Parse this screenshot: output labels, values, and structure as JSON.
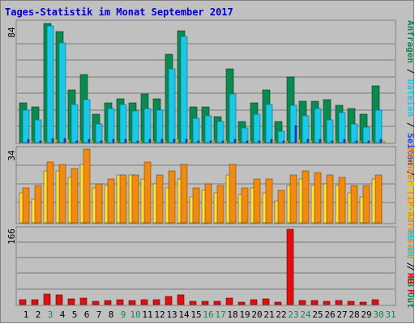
{
  "title": "Tages-Statistik im Monat September 2017",
  "colors": {
    "background": "#c0c0c0",
    "frame": "#808080",
    "title": "#0000cc",
    "grid": "#7a7a7a",
    "weekday": "#000000",
    "weekend": "#0b8a4f"
  },
  "legend_right": {
    "panel1": [
      {
        "text": "Anfragen",
        "color": "#0b8a4f"
      },
      {
        "text": " / ",
        "color": "#000000"
      },
      {
        "text": "Dateien",
        "color": "#1cc8e8"
      },
      {
        "text": " / ",
        "color": "#000000"
      },
      {
        "text": "Seiten",
        "color": "#1e44d8"
      },
      {
        "text": " / ",
        "color": "#000000"
      },
      {
        "text": "Besuche",
        "color": "#e5d400"
      }
    ],
    "panel2": [
      {
        "text": "Rechner (IP-Adressen)",
        "color": "#f08a10"
      },
      {
        "text": " / ",
        "color": "#000000"
      },
      {
        "text": "KB Out",
        "color": "#0b8a4f"
      }
    ],
    "panel3": [
      {
        "text": "KB In",
        "color": "#1cc8e8"
      },
      {
        "text": " / ",
        "color": "#000000"
      },
      {
        "text": "KB F",
        "color": "#e01010"
      }
    ]
  },
  "chart_data": [
    {
      "type": "bar",
      "title": "Tages-Statistik im Monat September 2017",
      "categories": [
        "1",
        "2",
        "3",
        "4",
        "5",
        "6",
        "7",
        "8",
        "9",
        "10",
        "11",
        "12",
        "13",
        "14",
        "15",
        "16",
        "17",
        "18",
        "19",
        "20",
        "21",
        "22",
        "23",
        "24",
        "25",
        "26",
        "27",
        "28",
        "29",
        "30",
        "31"
      ],
      "weekend_days": [
        "3",
        "9",
        "10",
        "16",
        "17",
        "23",
        "24",
        "30",
        "31"
      ],
      "ylabel": "84",
      "ylim": [
        0,
        84
      ],
      "series": [
        {
          "name": "Anfragen",
          "color": "#0b8a4f",
          "values": [
            28,
            25,
            84,
            78,
            37,
            48,
            20,
            28,
            31,
            28,
            34,
            31,
            62,
            79,
            25,
            25,
            18,
            52,
            15,
            28,
            37,
            15,
            46,
            29,
            29,
            30,
            26,
            24,
            20,
            40,
            null
          ]
        },
        {
          "name": "Dateien",
          "color": "#1cc8e8",
          "values": [
            23,
            16,
            82,
            70,
            27,
            30,
            13,
            24,
            27,
            22,
            24,
            23,
            52,
            75,
            17,
            19,
            15,
            34,
            10,
            20,
            27,
            8,
            26,
            19,
            24,
            16,
            21,
            13,
            11,
            23,
            null
          ]
        },
        {
          "name": "Seiten",
          "color": "#1e44d8",
          "values": [
            2,
            1,
            3,
            3,
            1,
            2,
            1,
            2,
            2,
            1,
            2,
            2,
            2,
            2,
            1,
            1,
            1,
            2,
            1,
            1,
            2,
            1,
            12,
            2,
            2,
            1,
            2,
            1,
            1,
            2,
            null
          ]
        },
        {
          "name": "Besuche",
          "color": "#e5d400",
          "values": [
            1,
            1,
            2,
            2,
            1,
            1,
            1,
            1,
            1,
            1,
            1,
            1,
            2,
            2,
            1,
            1,
            1,
            1,
            1,
            1,
            1,
            1,
            2,
            1,
            1,
            1,
            1,
            1,
            1,
            1,
            null
          ]
        }
      ]
    },
    {
      "type": "bar",
      "categories": [
        "1",
        "2",
        "3",
        "4",
        "5",
        "6",
        "7",
        "8",
        "9",
        "10",
        "11",
        "12",
        "13",
        "14",
        "15",
        "16",
        "17",
        "18",
        "19",
        "20",
        "21",
        "22",
        "23",
        "24",
        "25",
        "26",
        "27",
        "28",
        "29",
        "30",
        "31"
      ],
      "ylabel": "34",
      "ylim": [
        0,
        34
      ],
      "series": [
        {
          "name": "Besuche",
          "color": "#ffe040",
          "values": [
            14,
            11,
            24,
            24,
            21,
            27,
            16,
            17,
            22,
            22,
            20,
            18,
            16,
            20,
            12,
            15,
            14,
            22,
            13,
            16,
            14,
            10,
            17,
            20,
            17,
            18,
            17,
            14,
            12,
            20,
            null
          ]
        },
        {
          "name": "Rechner (IP-Adressen)",
          "color": "#f08a10",
          "values": [
            16,
            17,
            28,
            27,
            25,
            34,
            18,
            20,
            22,
            22,
            28,
            22,
            24,
            27,
            16,
            18,
            17,
            27,
            16,
            20,
            20,
            15,
            22,
            24,
            23,
            22,
            21,
            17,
            17,
            22,
            null
          ]
        }
      ]
    },
    {
      "type": "bar",
      "categories": [
        "1",
        "2",
        "3",
        "4",
        "5",
        "6",
        "7",
        "8",
        "9",
        "10",
        "11",
        "12",
        "13",
        "14",
        "15",
        "16",
        "17",
        "18",
        "19",
        "20",
        "21",
        "22",
        "23",
        "24",
        "25",
        "26",
        "27",
        "28",
        "29",
        "30",
        "31"
      ],
      "ylabel": "166",
      "ylim": [
        0,
        166
      ],
      "series": [
        {
          "name": "KB F",
          "color": "#e01010",
          "values": [
            10,
            10,
            24,
            22,
            12,
            14,
            7,
            9,
            10,
            9,
            10,
            10,
            17,
            21,
            8,
            8,
            7,
            15,
            6,
            10,
            12,
            6,
            166,
            9,
            9,
            8,
            9,
            8,
            6,
            11,
            null
          ]
        }
      ]
    }
  ]
}
